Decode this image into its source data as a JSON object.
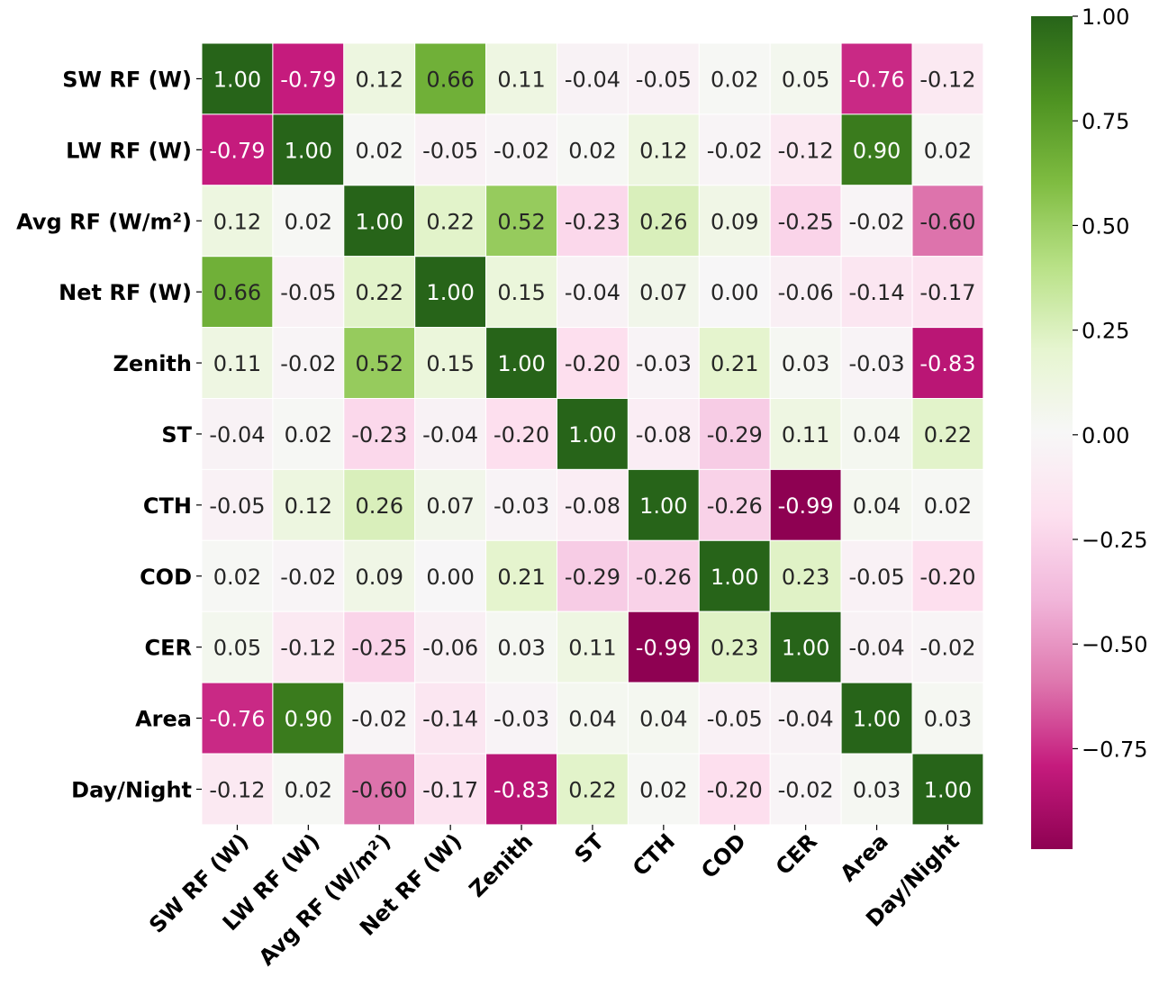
{
  "chart_data": {
    "type": "heatmap",
    "title": "",
    "xlabel": "",
    "ylabel": "",
    "labels": [
      "SW RF (W)",
      "LW RF (W)",
      "Avg RF (W/m²)",
      "Net RF (W)",
      "Zenith",
      "ST",
      "CTH",
      "COD",
      "CER",
      "Area",
      "Day/Night"
    ],
    "matrix": [
      [
        1.0,
        -0.79,
        0.12,
        0.66,
        0.11,
        -0.04,
        -0.05,
        0.02,
        0.05,
        -0.76,
        -0.12
      ],
      [
        -0.79,
        1.0,
        0.02,
        -0.05,
        -0.02,
        0.02,
        0.12,
        -0.02,
        -0.12,
        0.9,
        0.02
      ],
      [
        0.12,
        0.02,
        1.0,
        0.22,
        0.52,
        -0.23,
        0.26,
        0.09,
        -0.25,
        -0.02,
        -0.6
      ],
      [
        0.66,
        -0.05,
        0.22,
        1.0,
        0.15,
        -0.04,
        0.07,
        0.0,
        -0.06,
        -0.14,
        -0.17
      ],
      [
        0.11,
        -0.02,
        0.52,
        0.15,
        1.0,
        -0.2,
        -0.03,
        0.21,
        0.03,
        -0.03,
        -0.83
      ],
      [
        -0.04,
        0.02,
        -0.23,
        -0.04,
        -0.2,
        1.0,
        -0.08,
        -0.29,
        0.11,
        0.04,
        0.22
      ],
      [
        -0.05,
        0.12,
        0.26,
        0.07,
        -0.03,
        -0.08,
        1.0,
        -0.26,
        -0.99,
        0.04,
        0.02
      ],
      [
        0.02,
        -0.02,
        0.09,
        0.0,
        0.21,
        -0.29,
        -0.26,
        1.0,
        0.23,
        -0.05,
        -0.2
      ],
      [
        0.05,
        -0.12,
        -0.25,
        -0.06,
        0.03,
        0.11,
        -0.99,
        0.23,
        1.0,
        -0.04,
        -0.02
      ],
      [
        -0.76,
        0.9,
        -0.02,
        -0.14,
        -0.03,
        0.04,
        0.04,
        -0.05,
        -0.04,
        1.0,
        0.03
      ],
      [
        -0.12,
        0.02,
        -0.6,
        -0.17,
        -0.83,
        0.22,
        0.02,
        -0.2,
        -0.02,
        0.03,
        1.0
      ]
    ],
    "colorbar": {
      "vmin": -0.99,
      "vmax": 1.0,
      "ticks": [
        1.0,
        0.75,
        0.5,
        0.25,
        0.0,
        -0.25,
        -0.5,
        -0.75
      ],
      "tick_labels": [
        "1.00",
        "0.75",
        "0.50",
        "0.25",
        "0.00",
        "−0.25",
        "−0.50",
        "−0.75"
      ],
      "colormap": "PiYG"
    },
    "annotation_format": "two-decimal",
    "legend": "colorbar-right"
  }
}
